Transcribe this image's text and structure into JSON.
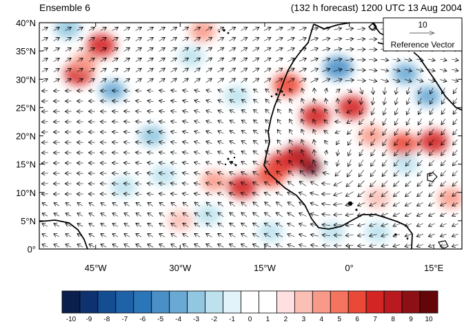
{
  "title_left": "Ensemble 6",
  "title_right": "(132 h forecast) 1200 UTC 13 Aug 2004",
  "reference_vector": {
    "magnitude": "10",
    "label": "Reference Vector"
  },
  "map": {
    "lon_range": [
      -55,
      20
    ],
    "lat_range": [
      0,
      40
    ],
    "lat_ticks": [
      {
        "value": 40,
        "label": "40°N"
      },
      {
        "value": 35,
        "label": "35°N"
      },
      {
        "value": 30,
        "label": "30°N"
      },
      {
        "value": 25,
        "label": "25°N"
      },
      {
        "value": 20,
        "label": "20°N"
      },
      {
        "value": 15,
        "label": "15°N"
      },
      {
        "value": 10,
        "label": "10°N"
      },
      {
        "value": 5,
        "label": "5°N"
      },
      {
        "value": 0,
        "label": "0°"
      }
    ],
    "lon_ticks": [
      {
        "value": -45,
        "label": "45°W"
      },
      {
        "value": -30,
        "label": "30°W"
      },
      {
        "value": -15,
        "label": "15°W"
      },
      {
        "value": 0,
        "label": "0°"
      },
      {
        "value": 15,
        "label": "15°E"
      }
    ],
    "anomaly_centers": [
      {
        "lon": -7,
        "lat": 14.5,
        "value": 10
      },
      {
        "lon": -9,
        "lat": 16.5,
        "value": 7
      },
      {
        "lon": -12,
        "lat": 15,
        "value": 6
      },
      {
        "lon": -19,
        "lat": 11,
        "value": 6
      },
      {
        "lon": -14,
        "lat": 13,
        "value": 5
      },
      {
        "lon": -6,
        "lat": 23.5,
        "value": 6
      },
      {
        "lon": 0.5,
        "lat": 25,
        "value": 6
      },
      {
        "lon": -11,
        "lat": 29,
        "value": 5
      },
      {
        "lon": -48,
        "lat": 31,
        "value": 6
      },
      {
        "lon": -44,
        "lat": 36,
        "value": 6
      },
      {
        "lon": 15,
        "lat": 19,
        "value": 6
      },
      {
        "lon": 9.5,
        "lat": 18.5,
        "value": 5
      },
      {
        "lon": 4,
        "lat": 20,
        "value": 3
      },
      {
        "lon": -47,
        "lat": 33,
        "value": 3
      },
      {
        "lon": -26,
        "lat": 38.5,
        "value": 3
      },
      {
        "lon": -24,
        "lat": 12,
        "value": 3
      },
      {
        "lon": -30,
        "lat": 5,
        "value": 2
      },
      {
        "lon": 18,
        "lat": 9,
        "value": 3
      },
      {
        "lon": 5,
        "lat": 9,
        "value": 2
      },
      {
        "lon": -2,
        "lat": 32,
        "value": -5
      },
      {
        "lon": 10,
        "lat": 31,
        "value": -4
      },
      {
        "lon": 14,
        "lat": 27,
        "value": -4
      },
      {
        "lon": -42,
        "lat": 28,
        "value": -4
      },
      {
        "lon": -50,
        "lat": 39,
        "value": -3
      },
      {
        "lon": -35,
        "lat": 20,
        "value": -3
      },
      {
        "lon": -28,
        "lat": 34,
        "value": -2
      },
      {
        "lon": -20,
        "lat": 27,
        "value": -2
      },
      {
        "lon": -33,
        "lat": 13,
        "value": -2
      },
      {
        "lon": -40,
        "lat": 11,
        "value": -2
      },
      {
        "lon": -14,
        "lat": 3,
        "value": -2
      },
      {
        "lon": -25,
        "lat": 6,
        "value": -2
      },
      {
        "lon": 10,
        "lat": 15,
        "value": -2
      },
      {
        "lon": -3,
        "lat": 3,
        "value": -2
      },
      {
        "lon": 5,
        "lat": 3,
        "value": -2
      }
    ]
  },
  "colorbar": {
    "labels": [
      "-10",
      "-9",
      "-8",
      "-7",
      "-6",
      "-5",
      "-4",
      "-3",
      "-2",
      "-1",
      "0",
      "1",
      "2",
      "3",
      "4",
      "5",
      "6",
      "7",
      "8",
      "9",
      "10"
    ],
    "colors": [
      "#0b1f4d",
      "#0e3270",
      "#144d92",
      "#1e63a8",
      "#2b76b8",
      "#4a90c7",
      "#6aa9d4",
      "#91c7e0",
      "#bde2ee",
      "#e2f4fa",
      "#ffffff",
      "#ffffff",
      "#fde0df",
      "#fbbfb6",
      "#f89a8a",
      "#f4745f",
      "#eb4938",
      "#d42525",
      "#b81a1f",
      "#8e1017",
      "#640509"
    ]
  }
}
